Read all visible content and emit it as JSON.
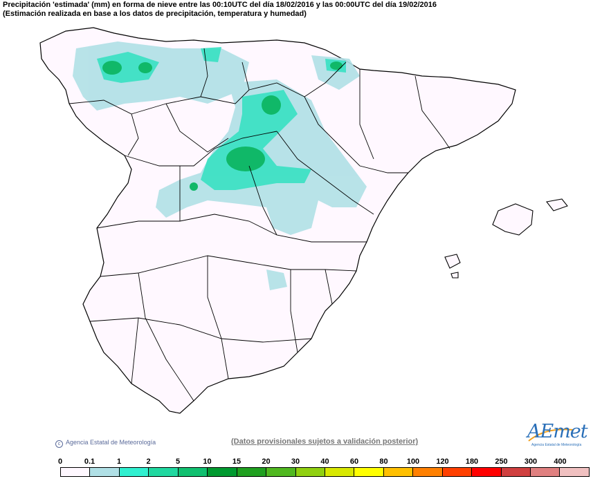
{
  "header": {
    "line1": "Precipitación 'estimada' (mm) en forma de nieve entre las 00:10UTC del día 18/02/2016 y las 00:00UTC del día 19/02/2016",
    "line2": "(Estimación realizada en base a los datos de precipitación, temperatura y humedad)"
  },
  "footer": {
    "credit": "Agencia Estatal de Meteorología",
    "disclaimer": "(Datos provisionales sujetos a validación posterior)",
    "logo_text": "AEmet",
    "logo_subtext": "Agencia Estatal de Meteorología"
  },
  "legend": {
    "ticks": [
      "0",
      "0.1",
      "1",
      "2",
      "5",
      "10",
      "15",
      "20",
      "30",
      "40",
      "60",
      "80",
      "100",
      "120",
      "180",
      "250",
      "300",
      "400"
    ],
    "colors": [
      "#fff8ff",
      "#b0e0e6",
      "#30f0d0",
      "#20d8a0",
      "#10c070",
      "#009a30",
      "#20a020",
      "#50b820",
      "#90d010",
      "#d8e800",
      "#ffff00",
      "#ffc000",
      "#ff8000",
      "#ff4000",
      "#ff0000",
      "#d04040",
      "#e08080",
      "#f0c0c0"
    ]
  },
  "map": {
    "land_color": "#fff8ff",
    "border_color": "#000000"
  }
}
